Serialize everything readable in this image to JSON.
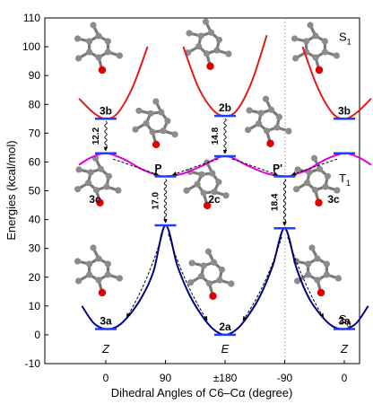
{
  "chart_data": {
    "type": "line",
    "title": "",
    "xlabel": "Dihedral Angles of C6–Cα (degree)",
    "ylabel": "Energies (kcal/mol)",
    "ylim": [
      -10,
      110
    ],
    "yticks": [
      -10,
      0,
      10,
      20,
      30,
      40,
      50,
      60,
      70,
      80,
      90,
      100,
      110
    ],
    "x_positions": [
      0,
      1,
      2,
      3,
      4
    ],
    "x_tick_labels": [
      "0",
      "90",
      "±180",
      "-90",
      "0"
    ],
    "config_labels": [
      {
        "x": 0,
        "text": "Z"
      },
      {
        "x": 2,
        "text": "E"
      },
      {
        "x": 4,
        "text": "Z"
      }
    ],
    "grid": false,
    "series": [
      {
        "name": "S1",
        "color": "#e31a1c",
        "segments": [
          {
            "x": [
              -0.45,
              -0.2,
              0,
              0.2,
              0.45,
              0.7
            ],
            "y": [
              82,
              77,
              75,
              77,
              86,
              100
            ]
          },
          {
            "x": [
              1.3,
              1.55,
              1.8,
              2,
              2.2,
              2.45,
              2.7
            ],
            "y": [
              100,
              86,
              78,
              76,
              78,
              88,
              104
            ]
          },
          {
            "x": [
              3.3,
              3.55,
              3.8,
              4,
              4.2,
              4.45
            ],
            "y": [
              100,
              86,
              77,
              75,
              77,
              82
            ]
          }
        ]
      },
      {
        "name": "T1",
        "color": "#e000e0",
        "segments": [
          {
            "x": [
              -0.45,
              -0.25,
              0,
              0.3,
              0.6,
              0.85,
              1,
              1.3,
              1.6,
              2,
              2.4,
              2.7,
              3,
              3.15,
              3.4,
              3.7,
              4,
              4.25,
              4.45
            ],
            "y": [
              59,
              61.5,
              63,
              61,
              57.5,
              55.5,
              55,
              56,
              58.5,
              62,
              58.5,
              56,
              55,
              55.5,
              57.5,
              61,
              63,
              61.5,
              59
            ]
          }
        ]
      },
      {
        "name": "S0",
        "color": "#00008b",
        "segments": [
          {
            "x": [
              -0.4,
              -0.2,
              0,
              0.2,
              0.4,
              0.6,
              0.8,
              1,
              1.2,
              1.4,
              1.6,
              1.8,
              2,
              2.2,
              2.4,
              2.6,
              2.8,
              3,
              3.2,
              3.4,
              3.6,
              3.8,
              4,
              4.2,
              4.4
            ],
            "y": [
              10,
              4,
              2,
              3,
              7,
              13,
              22,
              38,
              24,
              14,
              7,
              2,
              0,
              2,
              7,
              14,
              24,
              37,
              23,
              13,
              7,
              3,
              2,
              4,
              10
            ]
          }
        ]
      }
    ],
    "levels": [
      {
        "name": "3b",
        "x": 0,
        "y": 75,
        "label_pos": "above"
      },
      {
        "name": "2b",
        "x": 2,
        "y": 76,
        "label_pos": "above"
      },
      {
        "name": "3b",
        "x": 4,
        "y": 75,
        "label_pos": "above"
      },
      {
        "name": "",
        "x": 0,
        "y": 63
      },
      {
        "name": "P",
        "x": 1,
        "y": 55,
        "label_pos": "above-left"
      },
      {
        "name": "",
        "x": 2,
        "y": 62
      },
      {
        "name": "P'",
        "x": 3,
        "y": 55,
        "label_pos": "above-left"
      },
      {
        "name": "",
        "x": 4,
        "y": 63
      },
      {
        "name": "",
        "x": 1,
        "y": 38
      },
      {
        "name": "",
        "x": 3,
        "y": 37
      },
      {
        "name": "3c",
        "x": 0,
        "y": 47,
        "label_pos": "label-only"
      },
      {
        "name": "2c",
        "x": 2,
        "y": 47,
        "label_pos": "label-only"
      },
      {
        "name": "3c",
        "x": 4,
        "y": 47,
        "label_pos": "label-only"
      },
      {
        "name": "3a",
        "x": 0,
        "y": 2,
        "label_pos": "above"
      },
      {
        "name": "2a",
        "x": 2,
        "y": 0,
        "label_pos": "above"
      },
      {
        "name": "3a",
        "x": 4,
        "y": 2,
        "label_pos": "above"
      }
    ],
    "energy_gaps": [
      {
        "label": "12.2",
        "x": 0,
        "y_from": 75,
        "y_to": 63
      },
      {
        "label": "14.8",
        "x": 2,
        "y_from": 76,
        "y_to": 62
      },
      {
        "label": "17.0",
        "x": 1,
        "y_from": 55,
        "y_to": 38
      },
      {
        "label": "18.4",
        "x": 3,
        "y_from": 55,
        "y_to": 37
      }
    ],
    "curve_labels": [
      {
        "series": "S1",
        "text": "S",
        "sub": "1"
      },
      {
        "series": "T1",
        "text": "T",
        "sub": "1"
      },
      {
        "series": "S0",
        "text": "S",
        "sub": "0"
      }
    ]
  }
}
